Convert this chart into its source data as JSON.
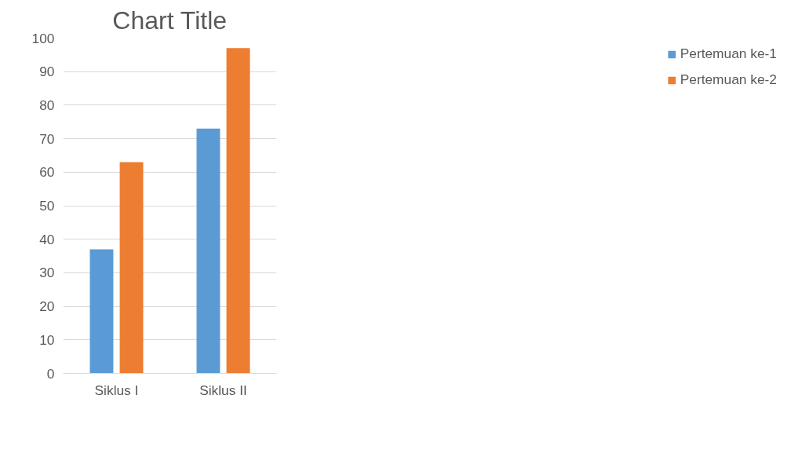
{
  "chart_data": {
    "type": "bar",
    "title": "Chart Title",
    "categories": [
      "Siklus I",
      "Siklus II"
    ],
    "series": [
      {
        "name": "Pertemuan ke-1",
        "color": "#5b9bd5",
        "values": [
          37,
          73
        ]
      },
      {
        "name": "Pertemuan ke-2",
        "color": "#ed7d31",
        "values": [
          63,
          97
        ]
      }
    ],
    "ylim": [
      0,
      100
    ],
    "yticks": [
      0,
      10,
      20,
      30,
      40,
      50,
      60,
      70,
      80,
      90,
      100
    ],
    "grid": "y",
    "legend": "right"
  }
}
